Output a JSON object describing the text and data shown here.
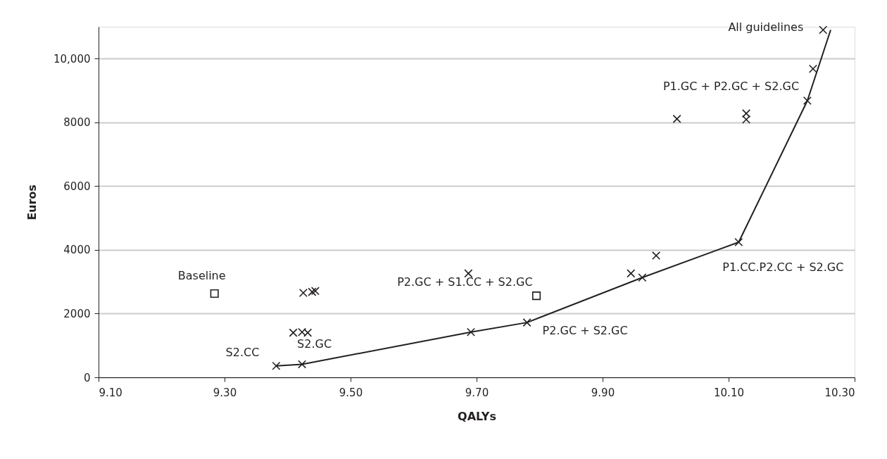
{
  "chart_data": {
    "type": "scatter",
    "xlabel": "QALYs",
    "ylabel": "Euros",
    "xlim": [
      9.1,
      10.3
    ],
    "xticks": [
      {
        "value": 9.1,
        "label": "9.10"
      },
      {
        "value": 9.3,
        "label": "9.30"
      },
      {
        "value": 9.5,
        "label": "9.50"
      },
      {
        "value": 9.7,
        "label": "9.70"
      },
      {
        "value": 9.9,
        "label": "9.90"
      },
      {
        "value": 10.1,
        "label": "10.10"
      },
      {
        "value": 10.3,
        "label": "10.30"
      }
    ],
    "ylim": [
      0,
      11000
    ],
    "yticks": [
      0,
      2000,
      4000,
      6000,
      8000,
      {
        "value": 10000,
        "label": "10,000"
      }
    ],
    "grid": "y",
    "series": [
      {
        "marker": "cross",
        "color": "#231f20",
        "x": [
          9.382,
          9.423,
          9.409,
          9.423,
          9.432,
          9.425,
          9.439,
          9.444,
          9.687,
          9.691,
          9.78,
          9.945,
          9.963,
          9.985,
          10.018,
          10.116,
          10.128,
          10.128,
          10.225,
          10.234,
          10.25
        ],
        "values": [
          360,
          410,
          1400,
          1420,
          1400,
          2650,
          2680,
          2710,
          3260,
          1420,
          1720,
          3260,
          3130,
          3820,
          8110,
          4240,
          8280,
          8090,
          8680,
          9680,
          10900
        ]
      },
      {
        "marker": "square",
        "color": "#231f20",
        "x": [
          9.284,
          9.795
        ],
        "values": [
          2630,
          2560
        ]
      },
      {
        "type": "line",
        "marker": "none",
        "line_style": "solid",
        "color": "#231f20",
        "x": [
          9.382,
          9.423,
          9.691,
          9.78,
          9.963,
          10.116,
          10.225,
          10.262
        ],
        "values": [
          360,
          410,
          1420,
          1720,
          3130,
          4240,
          8680,
          10900
        ]
      }
    ],
    "annotations": [
      {
        "text": "All guidelines",
        "x": 10.25,
        "y": 10900
      },
      {
        "text": "P1.GC + P2.GC + S2.GC",
        "x": 10.128,
        "y": 8280
      },
      {
        "text": "P2.GC + S1.CC + S2.GC",
        "x": 9.687,
        "y": 3260
      },
      {
        "text": "P2.GC + S2.GC",
        "x": 9.78,
        "y": 1720
      },
      {
        "text": "P1.CC.P2.CC + S2.GC",
        "x": 10.116,
        "y": 4240
      },
      {
        "text": "S2.CC",
        "x": 9.382,
        "y": 360
      },
      {
        "text": "S2.GC",
        "x": 9.423,
        "y": 410
      },
      {
        "text": "Baseline",
        "x": 9.284,
        "y": 2630
      }
    ]
  }
}
